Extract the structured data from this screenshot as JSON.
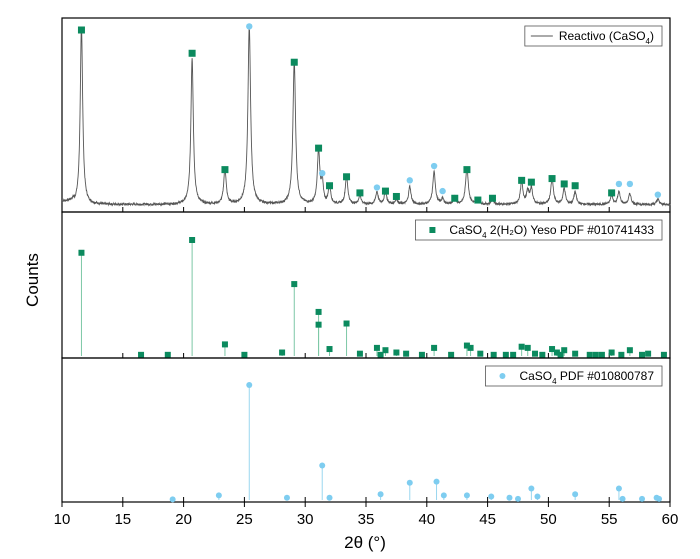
{
  "chart_data": {
    "type": "line",
    "xlabel": "2θ (°)",
    "ylabel": "Counts",
    "xlim": [
      10,
      60
    ],
    "xticks": [
      10,
      15,
      20,
      25,
      30,
      35,
      40,
      45,
      50,
      55,
      60
    ],
    "grid": false,
    "panels": [
      {
        "name": "top",
        "legend": {
          "position": "top-right",
          "text": "Reactivo (CaSO",
          "sub": "4",
          "suffix": ")"
        },
        "series": {
          "name": "Reactivo (CaSO4)",
          "color": "#555555",
          "baseline": 2.5,
          "peaks": [
            [
              11.6,
              100,
              0.12
            ],
            [
              20.7,
              82,
              0.12
            ],
            [
              23.4,
              20,
              0.12
            ],
            [
              25.4,
              100,
              0.13
            ],
            [
              29.1,
              80,
              0.13
            ],
            [
              31.1,
              30,
              0.12
            ],
            [
              31.4,
              12,
              0.1
            ],
            [
              32.0,
              10,
              0.12
            ],
            [
              33.4,
              16,
              0.12
            ],
            [
              34.5,
              5,
              0.12
            ],
            [
              35.9,
              7,
              0.12
            ],
            [
              36.6,
              7,
              0.12
            ],
            [
              37.5,
              3,
              0.12
            ],
            [
              38.6,
              10,
              0.12
            ],
            [
              40.6,
              18,
              0.13
            ],
            [
              41.3,
              3,
              0.12
            ],
            [
              42.3,
              4,
              0.12
            ],
            [
              43.3,
              21,
              0.13
            ],
            [
              44.2,
              3,
              0.12
            ],
            [
              45.4,
              3,
              0.12
            ],
            [
              47.8,
              12,
              0.13
            ],
            [
              48.3,
              7,
              0.12
            ],
            [
              48.6,
              9,
              0.12
            ],
            [
              50.3,
              14,
              0.13
            ],
            [
              51.3,
              9,
              0.12
            ],
            [
              52.2,
              7,
              0.12
            ],
            [
              55.2,
              5,
              0.12
            ],
            [
              55.8,
              7,
              0.12
            ],
            [
              56.7,
              6,
              0.12
            ],
            [
              59.0,
              3,
              0.12
            ]
          ]
        },
        "markers": [
          {
            "shape": "square",
            "color": "#0b8a5e",
            "x": [
              11.6,
              20.7,
              23.4,
              29.1,
              31.1,
              32.0,
              33.4,
              34.5,
              36.6,
              37.5,
              42.3,
              43.3,
              44.2,
              45.4,
              47.8,
              48.6,
              50.3,
              51.3,
              52.2,
              55.2
            ],
            "y": [
              100,
              87,
              22,
              82,
              34,
              13,
              18,
              9,
              10,
              7,
              6,
              22,
              5,
              6,
              16,
              15,
              17,
              14,
              13,
              9
            ]
          },
          {
            "shape": "circle",
            "color": "#7ecdf0",
            "x": [
              25.4,
              31.4,
              35.9,
              38.6,
              40.6,
              41.3,
              55.8,
              56.7,
              59.0
            ],
            "y": [
              102,
              20,
              12,
              16,
              24,
              10,
              14,
              14,
              8
            ]
          }
        ]
      },
      {
        "name": "middle",
        "legend": {
          "position": "top-right",
          "text": "CaSO",
          "sub": "4",
          "suffix": " 2(H₂O) Yeso PDF #010741433"
        },
        "series": {
          "name": "CaSO4 2(H2O) Yeso PDF #010741433",
          "color": "#7cc7a6",
          "x": [
            11.6,
            20.7,
            23.4,
            29.1,
            31.1,
            31.1,
            33.4,
            32.0,
            16.5,
            18.7,
            25.0,
            28.1,
            34.5,
            35.9,
            36.6,
            37.5,
            40.6,
            43.3,
            43.6,
            47.8,
            48.3,
            50.3,
            50.7,
            51.3,
            52.2,
            55.2,
            56.7,
            36.2,
            38.3,
            39.6,
            42.0,
            44.4,
            45.5,
            46.5,
            47.1,
            48.9,
            49.5,
            51.0,
            53.4,
            53.9,
            54.4,
            56.0,
            57.7,
            58.2,
            59.5
          ],
          "y": [
            89,
            100,
            10,
            62,
            38,
            27,
            28,
            6,
            1,
            1,
            1,
            3,
            2,
            7,
            5,
            3,
            7,
            9,
            7,
            8,
            7,
            6,
            3,
            5,
            2,
            3,
            5,
            1,
            2,
            1,
            1,
            2,
            1,
            1,
            1,
            2,
            1,
            1,
            1,
            1,
            1,
            1,
            1,
            2,
            1
          ]
        }
      },
      {
        "name": "bottom",
        "legend": {
          "position": "top-right",
          "text": "CaSO",
          "sub": "4",
          "suffix": " PDF #010800787"
        },
        "series": {
          "name": "CaSO4 PDF #010800787",
          "color": "#9ad6ef",
          "x": [
            25.4,
            31.4,
            38.6,
            40.8,
            48.6,
            55.8,
            22.9,
            28.5,
            32.0,
            36.2,
            41.4,
            43.3,
            45.3,
            46.8,
            47.5,
            49.1,
            52.2,
            19.1,
            56.1,
            57.7,
            58.9,
            59.1
          ],
          "y": [
            100,
            30,
            15,
            16,
            10,
            10,
            4,
            2,
            2,
            5,
            4,
            4,
            3,
            2,
            1,
            3,
            5,
            0.5,
            1,
            1,
            2,
            1
          ]
        }
      }
    ]
  }
}
